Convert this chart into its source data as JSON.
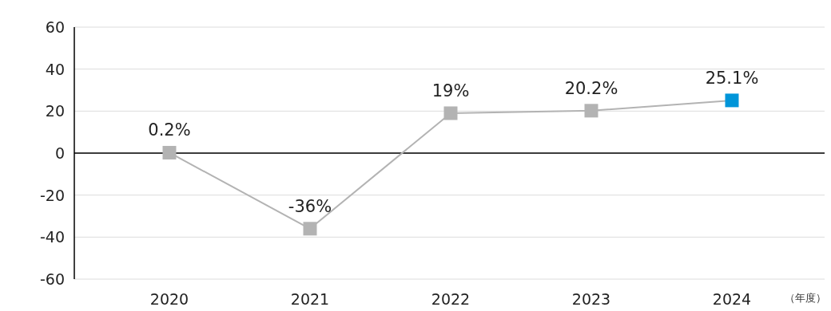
{
  "chart_data": {
    "type": "line",
    "categories": [
      "2020",
      "2021",
      "2022",
      "2023",
      "2024"
    ],
    "values": [
      0.2,
      -36,
      19,
      20.2,
      25.1
    ],
    "value_labels": [
      "0.2%",
      "-36%",
      "19%",
      "20.2%",
      "25.1%"
    ],
    "color": "#b3b3b3",
    "colors": [
      "#b3b3b3",
      "#b3b3b3",
      "#b3b3b3",
      "#b3b3b3",
      "#0095d9"
    ],
    "marker": "square",
    "line_style": "solid",
    "xlabel": "（年度）",
    "ylim": [
      -60,
      60
    ],
    "yticks": [
      -60,
      -40,
      -20,
      0,
      20,
      40,
      60
    ],
    "grid": "y",
    "ref_lines": [
      {
        "axis": "y",
        "value": 0,
        "color": "#000000"
      }
    ]
  }
}
